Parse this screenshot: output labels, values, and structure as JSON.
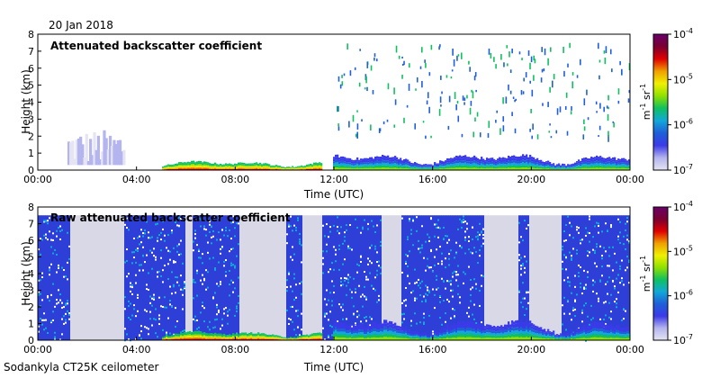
{
  "header": {
    "date": "20 Jan 2018"
  },
  "footer": {
    "site": "Sodankyla CT25K ceilometer"
  },
  "colors": {
    "background": "#ffffff",
    "no_signal": "#d8d8e6",
    "colormap": [
      "#e4e4f2",
      "#b4b4ee",
      "#3a3ae8",
      "#1f5fd8",
      "#12a8d8",
      "#10c060",
      "#8ee000",
      "#f0f000",
      "#f0a000",
      "#e00000",
      "#7a0030",
      "#6a006a"
    ]
  },
  "chart_data": [
    {
      "type": "heatmap",
      "title": "Attenuated backscatter coefficient",
      "xlabel": "Time (UTC)",
      "ylabel": "Height (km)",
      "xlim": [
        0,
        24
      ],
      "ylim": [
        0,
        8
      ],
      "x_ticks": [
        "00:00",
        "04:00",
        "08:00",
        "12:00",
        "16:00",
        "20:00",
        "00:00"
      ],
      "y_ticks": [
        "0",
        "1",
        "2",
        "3",
        "4",
        "5",
        "6",
        "7",
        "8"
      ],
      "colorbar": {
        "scale": "log",
        "range": [
          1e-07,
          0.0001
        ],
        "tick_base": "10",
        "tick_exponents": [
          "-4",
          "-5",
          "-6",
          "-7"
        ],
        "units": {
          "m": "m",
          "exp_m": "-1",
          "sr": "sr",
          "exp_sr": "-1"
        }
      },
      "layers": [
        {
          "name": "boundary layer",
          "from_hour": 12,
          "to_hour": 24,
          "base_km": 0.15,
          "top_km": 0.9,
          "peak_color_index": 6
        },
        {
          "name": "morning aerosol",
          "from_hour": 5,
          "to_hour": 11.5,
          "base_km": 0.1,
          "top_km": 0.5,
          "peak_color_index": 9
        }
      ],
      "clouds": [
        {
          "from_hour": 1.2,
          "to_hour": 3.5,
          "base_km": 0.3,
          "top_km": 2.4
        }
      ]
    },
    {
      "type": "heatmap",
      "title": "Raw attenuated backscatter coefficient",
      "xlabel": "Time (UTC)",
      "ylabel": "Height (km)",
      "xlim": [
        0,
        24
      ],
      "ylim": [
        0,
        8
      ],
      "x_ticks": [
        "00:00",
        "04:00",
        "08:00",
        "12:00",
        "16:00",
        "20:00",
        "00:00"
      ],
      "y_ticks": [
        "0",
        "1",
        "2",
        "3",
        "4",
        "5",
        "6",
        "7",
        "8"
      ],
      "colorbar": {
        "scale": "log",
        "range": [
          1e-07,
          0.0001
        ],
        "tick_base": "10",
        "tick_exponents": [
          "-4",
          "-5",
          "-6",
          "-7"
        ],
        "units": {
          "m": "m",
          "exp_m": "-1",
          "sr": "sr",
          "exp_sr": "-1"
        }
      },
      "noise_top_km": 7.5,
      "gray_gaps_hours": [
        [
          1.3,
          3.5
        ],
        [
          6.0,
          6.3
        ],
        [
          8.2,
          10.1
        ],
        [
          10.7,
          11.5
        ],
        [
          13.9,
          14.7
        ],
        [
          18.1,
          19.5
        ],
        [
          19.9,
          21.2
        ]
      ],
      "layers": [
        {
          "name": "boundary layer",
          "from_hour": 12,
          "to_hour": 24,
          "base_km": 0.15,
          "top_km": 1.2,
          "peak_color_index": 6
        },
        {
          "name": "morning aerosol",
          "from_hour": 5,
          "to_hour": 11.5,
          "base_km": 0.1,
          "top_km": 0.5,
          "peak_color_index": 9
        }
      ]
    }
  ]
}
